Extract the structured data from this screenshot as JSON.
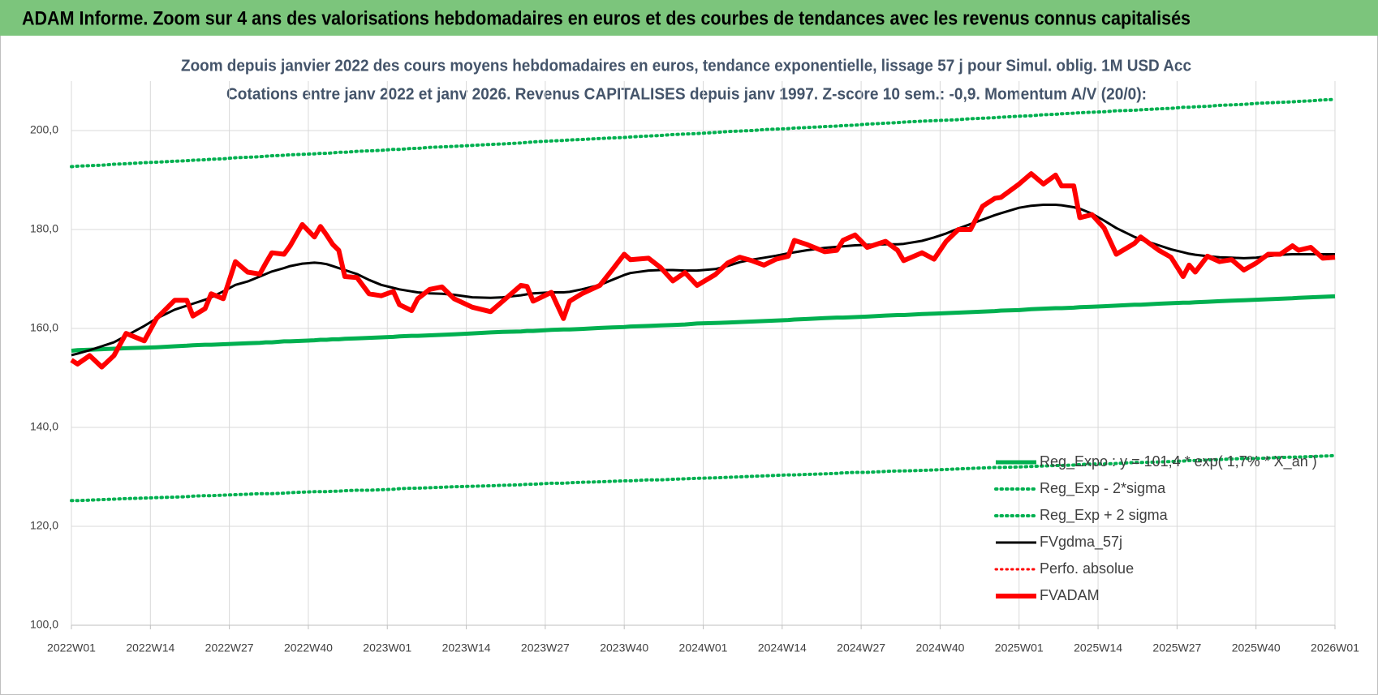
{
  "header": {
    "title": "ADAM Informe. Zoom sur 4 ans des valorisations hebdomadaires en euros et des courbes de tendances avec les revenus connus capitalisés"
  },
  "chart_data": {
    "type": "line",
    "title": "Zoom depuis janvier 2022 des cours moyens hebdomadaires en euros, tendance exponentielle, lissage 57 j pour Simul. oblig. 1M USD Acc",
    "subtitle": "Cotations entre janv 2022 et janv 2026. Revenus CAPITALISES depuis janv 1997. Z-score 10 sem.: -0,9. Momentum A/V (20/0):",
    "x": [
      0,
      1,
      3,
      5,
      7,
      9,
      12,
      14,
      17,
      19,
      20,
      22,
      23,
      25,
      27,
      29,
      31,
      32,
      33,
      35,
      36,
      38,
      40,
      41,
      42,
      43,
      44,
      45,
      47,
      49,
      51,
      53,
      54,
      56,
      57,
      59,
      61,
      63,
      66,
      69,
      71,
      74,
      75,
      76,
      79,
      81,
      82,
      84,
      87,
      89,
      91,
      92,
      95,
      97,
      99,
      101,
      103,
      106,
      108,
      110,
      112,
      114,
      116,
      118,
      119,
      121,
      124,
      126,
      127,
      129,
      131,
      134,
      136,
      137,
      140,
      142,
      144,
      146,
      148,
      150,
      152,
      153,
      156,
      158,
      160,
      162,
      163,
      165,
      166,
      168,
      170,
      172,
      175,
      176,
      179,
      181,
      183,
      184,
      185,
      187,
      189,
      191,
      193,
      195,
      197,
      199,
      201,
      202,
      204,
      206,
      208
    ],
    "xlim": [
      0,
      208
    ],
    "xticks": [
      {
        "value": 0,
        "label": "2022W01"
      },
      {
        "value": 13,
        "label": "2022W14"
      },
      {
        "value": 26,
        "label": "2022W27"
      },
      {
        "value": 39,
        "label": "2022W40"
      },
      {
        "value": 52,
        "label": "2023W01"
      },
      {
        "value": 65,
        "label": "2023W14"
      },
      {
        "value": 78,
        "label": "2023W27"
      },
      {
        "value": 91,
        "label": "2023W40"
      },
      {
        "value": 104,
        "label": "2024W01"
      },
      {
        "value": 117,
        "label": "2024W14"
      },
      {
        "value": 130,
        "label": "2024W27"
      },
      {
        "value": 143,
        "label": "2024W40"
      },
      {
        "value": 156,
        "label": "2025W01"
      },
      {
        "value": 169,
        "label": "2025W14"
      },
      {
        "value": 182,
        "label": "2025W27"
      },
      {
        "value": 195,
        "label": "2025W40"
      },
      {
        "value": 208,
        "label": "2026W01"
      }
    ],
    "ylim": [
      100,
      210
    ],
    "yticks": [
      {
        "value": 100,
        "label": "100,0"
      },
      {
        "value": 120,
        "label": "120,0"
      },
      {
        "value": 140,
        "label": "140,0"
      },
      {
        "value": 160,
        "label": "160,0"
      },
      {
        "value": 180,
        "label": "180,0"
      },
      {
        "value": 200,
        "label": "200,0"
      }
    ],
    "grid": true,
    "legend": "lower right",
    "series": [
      {
        "name": "Reg_Expo : y = 101,4 * exp( 1,7% * X_an )",
        "color": "#00b050",
        "line_style": "solid",
        "values": [
          155.5,
          155.6,
          155.7,
          155.8,
          155.9,
          156.0,
          156.1,
          156.2,
          156.4,
          156.5,
          156.6,
          156.7,
          156.7,
          156.8,
          156.9,
          157.0,
          157.1,
          157.2,
          157.2,
          157.4,
          157.4,
          157.5,
          157.6,
          157.7,
          157.7,
          157.8,
          157.8,
          157.9,
          158.0,
          158.1,
          158.2,
          158.3,
          158.4,
          158.5,
          158.5,
          158.6,
          158.7,
          158.8,
          159.0,
          159.2,
          159.3,
          159.4,
          159.5,
          159.5,
          159.7,
          159.8,
          159.8,
          159.9,
          160.1,
          160.2,
          160.3,
          160.4,
          160.5,
          160.6,
          160.7,
          160.8,
          161.0,
          161.1,
          161.2,
          161.3,
          161.4,
          161.5,
          161.6,
          161.7,
          161.8,
          161.9,
          162.1,
          162.2,
          162.2,
          162.3,
          162.4,
          162.6,
          162.7,
          162.7,
          162.9,
          163.0,
          163.1,
          163.2,
          163.3,
          163.4,
          163.5,
          163.6,
          163.7,
          163.9,
          164.0,
          164.1,
          164.1,
          164.2,
          164.3,
          164.4,
          164.5,
          164.6,
          164.8,
          164.8,
          165.0,
          165.1,
          165.2,
          165.2,
          165.3,
          165.4,
          165.5,
          165.6,
          165.7,
          165.8,
          165.9,
          166.0,
          166.1,
          166.2,
          166.3,
          166.4,
          166.5
        ]
      },
      {
        "name": "Reg_Exp - 2*sigma",
        "color": "#00b050",
        "line_style": "dotted",
        "values": [
          125.2,
          125.2,
          125.3,
          125.4,
          125.5,
          125.6,
          125.7,
          125.8,
          125.9,
          126.0,
          126.1,
          126.2,
          126.2,
          126.3,
          126.4,
          126.5,
          126.6,
          126.6,
          126.6,
          126.7,
          126.8,
          126.9,
          127.0,
          127.0,
          127.0,
          127.1,
          127.1,
          127.2,
          127.3,
          127.3,
          127.4,
          127.5,
          127.6,
          127.7,
          127.7,
          127.8,
          127.9,
          128.0,
          128.1,
          128.2,
          128.3,
          128.4,
          128.5,
          128.5,
          128.7,
          128.7,
          128.8,
          128.9,
          129.0,
          129.1,
          129.2,
          129.2,
          129.4,
          129.4,
          129.5,
          129.6,
          129.7,
          129.8,
          129.9,
          130.0,
          130.1,
          130.2,
          130.3,
          130.4,
          130.4,
          130.5,
          130.6,
          130.7,
          130.8,
          130.9,
          130.9,
          131.1,
          131.2,
          131.2,
          131.3,
          131.4,
          131.5,
          131.6,
          131.7,
          131.8,
          131.9,
          131.9,
          132.0,
          132.1,
          132.2,
          132.3,
          132.3,
          132.4,
          132.5,
          132.6,
          132.6,
          132.7,
          132.9,
          132.9,
          133.0,
          133.1,
          133.2,
          133.3,
          133.3,
          133.4,
          133.5,
          133.6,
          133.7,
          133.7,
          133.8,
          133.9,
          134.0,
          134.0,
          134.1,
          134.2,
          134.3
        ]
      },
      {
        "name": "Reg_Exp + 2 sigma",
        "color": "#00b050",
        "line_style": "dotted",
        "values": [
          192.7,
          192.8,
          192.9,
          193.0,
          193.2,
          193.3,
          193.5,
          193.6,
          193.8,
          193.9,
          194.0,
          194.1,
          194.2,
          194.3,
          194.5,
          194.6,
          194.7,
          194.8,
          194.9,
          195.0,
          195.1,
          195.2,
          195.3,
          195.4,
          195.4,
          195.5,
          195.6,
          195.6,
          195.8,
          195.9,
          196.0,
          196.2,
          196.2,
          196.4,
          196.4,
          196.6,
          196.7,
          196.8,
          197.0,
          197.2,
          197.3,
          197.5,
          197.6,
          197.7,
          197.9,
          198.0,
          198.1,
          198.2,
          198.4,
          198.5,
          198.6,
          198.7,
          198.9,
          199.0,
          199.2,
          199.3,
          199.4,
          199.6,
          199.8,
          199.9,
          200.0,
          200.2,
          200.3,
          200.4,
          200.5,
          200.6,
          200.8,
          200.9,
          201.0,
          201.1,
          201.3,
          201.5,
          201.6,
          201.7,
          201.9,
          202.0,
          202.1,
          202.2,
          202.4,
          202.5,
          202.6,
          202.7,
          202.9,
          203.0,
          203.2,
          203.3,
          203.4,
          203.5,
          203.6,
          203.7,
          203.8,
          204.0,
          204.1,
          204.2,
          204.4,
          204.5,
          204.7,
          204.7,
          204.8,
          204.9,
          205.1,
          205.2,
          205.3,
          205.5,
          205.6,
          205.7,
          205.8,
          205.9,
          206.0,
          206.2,
          206.3
        ]
      },
      {
        "name": "FVgdma_57j",
        "color": "#000000",
        "line_style": "solid",
        "values": [
          154.6,
          154.9,
          155.6,
          156.4,
          157.2,
          158.5,
          160.5,
          162.0,
          163.8,
          164.6,
          165.0,
          165.8,
          166.3,
          167.5,
          168.8,
          169.5,
          170.5,
          171.0,
          171.5,
          172.2,
          172.6,
          173.1,
          173.3,
          173.2,
          173.0,
          172.6,
          172.2,
          171.8,
          171.0,
          169.8,
          168.8,
          168.2,
          167.9,
          167.5,
          167.3,
          167.1,
          167.0,
          166.8,
          166.3,
          166.2,
          166.3,
          166.7,
          166.9,
          167.1,
          167.3,
          167.3,
          167.4,
          167.9,
          168.8,
          169.8,
          170.8,
          171.2,
          171.7,
          171.8,
          171.8,
          171.7,
          171.7,
          172.0,
          172.6,
          173.4,
          173.9,
          174.3,
          174.7,
          175.2,
          175.4,
          175.8,
          176.3,
          176.5,
          176.6,
          176.8,
          176.9,
          177.0,
          177.0,
          177.1,
          177.7,
          178.4,
          179.2,
          180.2,
          181.1,
          182.0,
          182.9,
          183.3,
          184.4,
          184.8,
          185.0,
          185.0,
          184.9,
          184.5,
          184.2,
          183.2,
          181.8,
          180.3,
          178.5,
          178.0,
          176.8,
          176.0,
          175.4,
          175.1,
          174.9,
          174.6,
          174.4,
          174.3,
          174.2,
          174.3,
          174.6,
          174.9,
          175.0,
          175.0,
          175.0,
          175.0,
          175.0
        ]
      },
      {
        "name": "Perfo. absolue",
        "color": "#ff0000",
        "line_style": "dotted",
        "values": [
          null,
          null,
          null,
          null,
          null,
          null,
          null,
          null,
          null,
          null,
          null,
          null,
          null,
          null,
          null,
          null,
          null,
          null,
          null,
          null,
          null,
          null,
          null,
          null,
          null,
          null,
          null,
          null,
          null,
          null,
          null,
          null,
          null,
          null,
          null,
          null,
          null,
          null,
          null,
          null,
          null,
          null,
          null,
          null,
          null,
          null,
          null,
          null,
          null,
          null,
          null,
          null,
          null,
          null,
          null,
          null,
          null,
          null,
          null,
          null,
          null,
          null,
          null,
          null,
          null,
          null,
          null,
          null,
          null,
          null,
          null,
          null,
          null,
          null,
          null,
          null,
          null,
          null,
          null,
          null,
          null,
          null,
          null,
          null,
          null,
          null,
          null,
          null,
          null,
          null,
          null,
          null,
          null,
          null,
          null,
          null,
          null,
          null,
          null,
          null,
          null,
          null,
          null,
          null,
          null,
          null,
          null,
          null,
          null,
          null,
          null
        ]
      },
      {
        "name": "FVADAM",
        "color": "#ff0000",
        "line_style": "solid",
        "values": [
          153.6,
          152.8,
          154.5,
          152.2,
          154.5,
          159.0,
          157.5,
          162.0,
          165.7,
          165.7,
          162.5,
          164.0,
          167.0,
          166.0,
          173.5,
          171.4,
          171.0,
          173.2,
          175.3,
          175.0,
          176.7,
          181.0,
          178.5,
          180.6,
          178.9,
          177.0,
          175.8,
          170.5,
          170.3,
          167.0,
          166.6,
          167.5,
          164.8,
          163.6,
          166.0,
          167.9,
          168.4,
          166.0,
          164.3,
          163.4,
          165.5,
          168.7,
          168.5,
          165.5,
          167.3,
          162.0,
          165.5,
          167.0,
          168.7,
          171.8,
          175.0,
          173.9,
          174.2,
          172.3,
          169.6,
          171.3,
          168.7,
          170.9,
          173.2,
          174.4,
          173.7,
          172.8,
          174.0,
          174.6,
          177.8,
          177.0,
          175.5,
          175.8,
          177.8,
          178.9,
          176.4,
          177.6,
          175.8,
          173.7,
          175.3,
          174.0,
          177.6,
          180.0,
          180.0,
          184.7,
          186.3,
          186.5,
          189.2,
          191.3,
          189.2,
          191.0,
          188.8,
          188.8,
          182.4,
          183.0,
          180.3,
          175.0,
          177.2,
          178.5,
          175.8,
          174.4,
          170.5,
          172.8,
          171.4,
          174.6,
          173.5,
          173.9,
          171.8,
          173.2,
          175.0,
          175.0,
          176.7,
          175.8,
          176.4,
          174.2,
          174.4
        ]
      }
    ]
  }
}
